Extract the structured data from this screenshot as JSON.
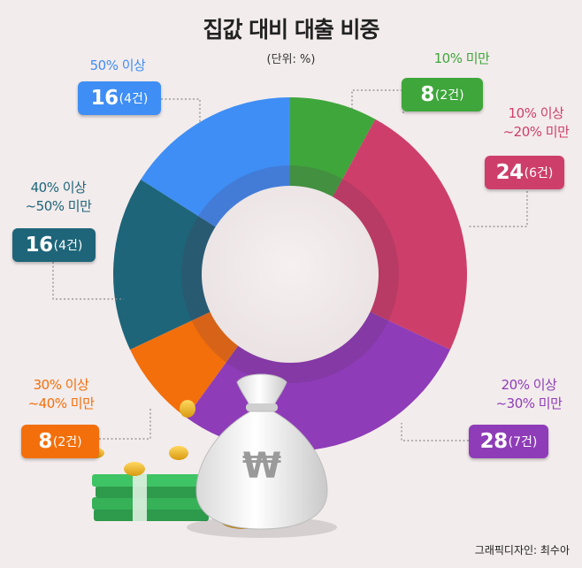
{
  "chart_data": {
    "type": "pie",
    "title": "집값 대비 대출 비중",
    "unit": "(단위: %)",
    "slices": [
      {
        "label_lines": [
          "10% 미만"
        ],
        "value": 8,
        "count": "(2건)",
        "color": "#3fa63c"
      },
      {
        "label_lines": [
          "10% 이상",
          "~20% 미만"
        ],
        "value": 24,
        "count": "(6건)",
        "color": "#cd3f6a"
      },
      {
        "label_lines": [
          "20% 이상",
          "~30% 미만"
        ],
        "value": 28,
        "count": "(7건)",
        "color": "#8e3cb8"
      },
      {
        "label_lines": [
          "30% 이상",
          "~40% 미만"
        ],
        "value": 8,
        "count": "(2건)",
        "color": "#f36f0c"
      },
      {
        "label_lines": [
          "40% 이상",
          "~50% 미만"
        ],
        "value": 16,
        "count": "(4건)",
        "color": "#1e6579"
      },
      {
        "label_lines": [
          "50% 이상"
        ],
        "value": 16,
        "count": "(4건)",
        "color": "#3e8ef5"
      }
    ]
  },
  "illustration": {
    "bag_symbol": "₩"
  },
  "credit": "그래픽디자인: 최수아"
}
